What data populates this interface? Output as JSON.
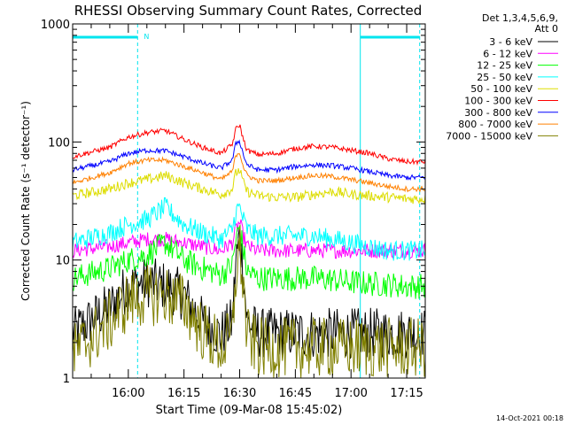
{
  "chart_data": {
    "type": "line",
    "title": "RHESSI Observing Summary Count Rates, Corrected",
    "xlabel": "Start Time (09-Mar-08 15:45:02)",
    "ylabel": "Corrected Count Rate (s⁻¹ detector⁻¹)",
    "yscale": "log",
    "ylim": [
      1,
      1000
    ],
    "xlim_minutes_after_15_45": [
      0,
      95
    ],
    "x_ticks": [
      {
        "label": "16:00",
        "minute": 15
      },
      {
        "label": "16:15",
        "minute": 30
      },
      {
        "label": "16:30",
        "minute": 45
      },
      {
        "label": "16:45",
        "minute": 60
      },
      {
        "label": "17:00",
        "minute": 75
      },
      {
        "label": "17:15",
        "minute": 90
      }
    ],
    "y_ticks": [
      "1",
      "10",
      "100",
      "1000"
    ],
    "legend_header": [
      "Det 1,3,4,5,6,9,",
      "Att 0"
    ],
    "legend_placement": "right",
    "night_marker": "N",
    "flag_intervals_minutes": [
      [
        0,
        17.5
      ],
      [
        77.5,
        93.5
      ]
    ],
    "flag_color": "#00e5ee",
    "series": [
      {
        "name": "3 - 6 keV",
        "color": "#000000",
        "x": [
          0,
          10,
          15,
          20,
          25,
          30,
          35,
          40,
          43,
          44,
          45,
          46,
          47,
          50,
          55,
          60,
          65,
          70,
          75,
          80,
          85,
          90,
          95
        ],
        "y": [
          2.4,
          4,
          6,
          6.5,
          6,
          5,
          3,
          2.3,
          3,
          10,
          16,
          8,
          3,
          2.4,
          2.4,
          2.4,
          2.4,
          2.4,
          2.4,
          2.4,
          2.4,
          2.4,
          2.4
        ]
      },
      {
        "name": "6 - 12 keV",
        "color": "#ff00ff",
        "x": [
          0,
          10,
          15,
          20,
          25,
          30,
          35,
          40,
          43,
          44,
          45,
          46,
          47,
          50,
          55,
          60,
          65,
          70,
          75,
          80,
          85,
          90,
          95
        ],
        "y": [
          12,
          13,
          14,
          15,
          15,
          14,
          13,
          12,
          14,
          18,
          21,
          16,
          13,
          12,
          12,
          12,
          12,
          12,
          12,
          12,
          12,
          12,
          12
        ]
      },
      {
        "name": "12 - 25 keV",
        "color": "#00ff00",
        "x": [
          0,
          10,
          15,
          20,
          25,
          30,
          35,
          40,
          43,
          44,
          45,
          46,
          47,
          50,
          55,
          60,
          65,
          70,
          75,
          80,
          85,
          90,
          95
        ],
        "y": [
          7,
          8.5,
          10,
          11,
          14,
          10,
          8.5,
          7.5,
          9,
          15,
          19,
          12,
          8,
          7,
          7,
          7,
          7,
          6.8,
          6.5,
          6.3,
          6.2,
          6,
          6
        ]
      },
      {
        "name": "25 - 50 keV",
        "color": "#00ffff",
        "x": [
          0,
          10,
          15,
          20,
          25,
          30,
          35,
          40,
          43,
          44,
          45,
          46,
          47,
          50,
          55,
          60,
          65,
          70,
          75,
          80,
          85,
          90,
          95
        ],
        "y": [
          14,
          17,
          20,
          22,
          28,
          20,
          17,
          15,
          18,
          26,
          28,
          22,
          18,
          16,
          16,
          16,
          16,
          15,
          14,
          13,
          12,
          12,
          12
        ]
      },
      {
        "name": "50 - 100 keV",
        "color": "#dddd00",
        "x": [
          0,
          10,
          15,
          20,
          25,
          30,
          35,
          40,
          43,
          44,
          45,
          46,
          47,
          50,
          55,
          60,
          65,
          70,
          75,
          80,
          85,
          90,
          95
        ],
        "y": [
          35,
          40,
          45,
          48,
          52,
          45,
          40,
          36,
          40,
          55,
          58,
          45,
          38,
          35,
          34,
          34,
          36,
          38,
          36,
          35,
          34,
          33,
          33
        ]
      },
      {
        "name": "100 - 300 keV",
        "color": "#ff0000",
        "x": [
          0,
          10,
          15,
          20,
          25,
          30,
          35,
          40,
          43,
          44,
          45,
          46,
          47,
          50,
          55,
          60,
          65,
          70,
          75,
          80,
          85,
          90,
          95
        ],
        "y": [
          75,
          90,
          110,
          120,
          125,
          105,
          90,
          80,
          95,
          130,
          140,
          105,
          85,
          78,
          80,
          88,
          92,
          90,
          85,
          80,
          72,
          68,
          68
        ]
      },
      {
        "name": "300 - 800 keV",
        "color": "#0000ff",
        "x": [
          0,
          10,
          15,
          20,
          25,
          30,
          35,
          40,
          43,
          44,
          45,
          46,
          47,
          50,
          55,
          60,
          65,
          70,
          75,
          80,
          85,
          90,
          95
        ],
        "y": [
          58,
          68,
          80,
          85,
          84,
          75,
          66,
          60,
          70,
          98,
          102,
          78,
          64,
          58,
          58,
          62,
          64,
          63,
          60,
          56,
          52,
          50,
          50
        ]
      },
      {
        "name": "800 - 7000 keV",
        "color": "#ff8000",
        "x": [
          0,
          10,
          15,
          20,
          25,
          30,
          35,
          40,
          43,
          44,
          45,
          46,
          47,
          50,
          55,
          60,
          65,
          70,
          75,
          80,
          85,
          90,
          95
        ],
        "y": [
          45,
          55,
          66,
          70,
          70,
          62,
          55,
          48,
          56,
          78,
          82,
          62,
          52,
          47,
          47,
          50,
          52,
          51,
          48,
          45,
          42,
          40,
          40
        ]
      },
      {
        "name": "7000 - 15000 keV",
        "color": "#808000",
        "x": [
          0,
          10,
          15,
          20,
          25,
          30,
          35,
          40,
          43,
          44,
          45,
          46,
          47,
          50,
          55,
          60,
          65,
          70,
          75,
          80,
          85,
          90,
          95
        ],
        "y": [
          1.6,
          3,
          4.5,
          5,
          5,
          4.3,
          2.5,
          1.8,
          2.2,
          8,
          13,
          6,
          2.2,
          1.8,
          1.8,
          1.8,
          1.8,
          1.8,
          1.8,
          1.8,
          1.8,
          1.8,
          1.8
        ]
      }
    ]
  },
  "footer_timestamp": "14-Oct-2021 00:18"
}
